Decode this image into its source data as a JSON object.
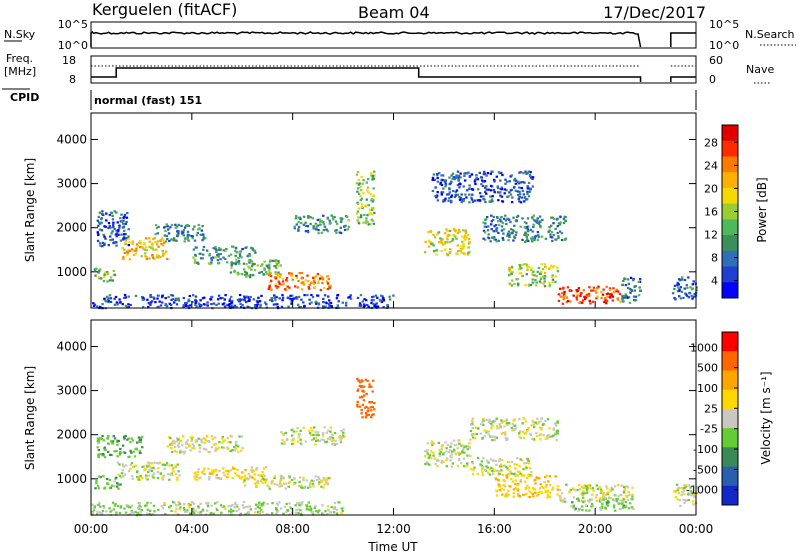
{
  "header": {
    "station": "Kerguelen (fitACF)",
    "beam": "Beam 04",
    "date": "17/Dec/2017"
  },
  "strip_panels": {
    "nsky": {
      "left_label": "N.Sky",
      "right_label": "N.Search",
      "left_ticks": [
        "10^5",
        "10^0"
      ],
      "right_ticks": [
        "10^5",
        "10^0"
      ]
    },
    "freq": {
      "left_label_line1": "Freq.",
      "left_label_line2": "[MHz]",
      "right_label": "Nave",
      "left_ticks": [
        "18",
        "8"
      ],
      "right_ticks": [
        "60",
        "0"
      ]
    },
    "cpid": {
      "label": "CPID",
      "mode_text": "normal (fast) 151"
    }
  },
  "chart_data": [
    {
      "type": "heatmap",
      "title": "",
      "ylabel": "Slant Range [km]",
      "xlabel": "",
      "ylim": [
        180,
        4600
      ],
      "y_ticks": [
        "4000",
        "3000",
        "2000",
        "1000"
      ],
      "x_ticks": [
        "00:00",
        "04:00",
        "08:00",
        "12:00",
        "16:00",
        "20:00",
        "00:00"
      ],
      "xlim_hours": [
        0,
        24
      ],
      "colorbar": {
        "label": "Power [dB]",
        "tick_labels": [
          "28",
          "24",
          "20",
          "16",
          "12",
          "8",
          "4"
        ],
        "colors": [
          "#0000ff",
          "#1f3fd0",
          "#2e6fb8",
          "#3a8f5a",
          "#4db85c",
          "#9acd32",
          "#f5d800",
          "#ffb000",
          "#ff7a00",
          "#ff2a00",
          "#e00000"
        ]
      },
      "regions": [
        {
          "t0": 0.2,
          "t1": 1.5,
          "r0": 1600,
          "r1": 2400,
          "v": 6
        },
        {
          "t0": 1.2,
          "t1": 3.0,
          "r0": 1300,
          "r1": 1800,
          "v": 20
        },
        {
          "t0": 0.1,
          "t1": 1.0,
          "r0": 800,
          "r1": 1100,
          "v": 14
        },
        {
          "t0": 2.5,
          "t1": 4.5,
          "r0": 1700,
          "r1": 2100,
          "v": 9
        },
        {
          "t0": 4.0,
          "t1": 6.5,
          "r0": 1200,
          "r1": 1600,
          "v": 11
        },
        {
          "t0": 5.5,
          "t1": 7.5,
          "r0": 900,
          "r1": 1300,
          "v": 13
        },
        {
          "t0": 7.0,
          "t1": 9.5,
          "r0": 600,
          "r1": 1000,
          "v": 24
        },
        {
          "t0": 8.0,
          "t1": 10.2,
          "r0": 1900,
          "r1": 2300,
          "v": 10
        },
        {
          "t0": 10.5,
          "t1": 11.2,
          "r0": 2100,
          "r1": 3300,
          "v": 15
        },
        {
          "t0": 13.2,
          "t1": 15.0,
          "r0": 1400,
          "r1": 2000,
          "v": 18
        },
        {
          "t0": 13.5,
          "t1": 17.5,
          "r0": 2600,
          "r1": 3300,
          "v": 6
        },
        {
          "t0": 15.5,
          "t1": 18.8,
          "r0": 1700,
          "r1": 2300,
          "v": 9
        },
        {
          "t0": 16.5,
          "t1": 18.5,
          "r0": 700,
          "r1": 1200,
          "v": 16
        },
        {
          "t0": 18.5,
          "t1": 21.0,
          "r0": 300,
          "r1": 700,
          "v": 27
        },
        {
          "t0": 21.0,
          "t1": 21.8,
          "r0": 300,
          "r1": 900,
          "v": 8
        },
        {
          "t0": 23.0,
          "t1": 24.0,
          "r0": 400,
          "r1": 900,
          "v": 8
        },
        {
          "t0": 0.0,
          "t1": 12.0,
          "r0": 200,
          "r1": 500,
          "v": 5
        }
      ]
    },
    {
      "type": "heatmap",
      "title": "",
      "ylabel": "Slant Range [km]",
      "xlabel": "Time UT",
      "ylim": [
        180,
        4600
      ],
      "y_ticks": [
        "4000",
        "3000",
        "2000",
        "1000"
      ],
      "x_ticks": [
        "00:00",
        "04:00",
        "08:00",
        "12:00",
        "16:00",
        "20:00",
        "00:00"
      ],
      "xlim_hours": [
        0,
        24
      ],
      "colorbar": {
        "label": "Velocity [m s⁻¹]",
        "tick_labels": [
          "1000",
          "500",
          "100",
          "25",
          "-25",
          "-100",
          "-500",
          "-1000"
        ],
        "colors": [
          "#1428c8",
          "#2a5fb0",
          "#3a8a55",
          "#66cc33",
          "#c8c8c0",
          "#ffd700",
          "#ffa500",
          "#ff6600",
          "#ff0000"
        ]
      },
      "regions": [
        {
          "t0": 0.2,
          "t1": 2.0,
          "r0": 1500,
          "r1": 2000,
          "v": 80
        },
        {
          "t0": 0.1,
          "t1": 1.2,
          "r0": 800,
          "r1": 1100,
          "v": 60
        },
        {
          "t0": 1.0,
          "t1": 3.5,
          "r0": 1000,
          "r1": 1400,
          "v": 0
        },
        {
          "t0": 3.0,
          "t1": 6.0,
          "r0": 1600,
          "r1": 2000,
          "v": 0
        },
        {
          "t0": 4.0,
          "t1": 7.0,
          "r0": 1000,
          "r1": 1300,
          "v": -60
        },
        {
          "t0": 6.0,
          "t1": 9.5,
          "r0": 800,
          "r1": 1100,
          "v": 0
        },
        {
          "t0": 7.5,
          "t1": 10.0,
          "r0": 1800,
          "r1": 2200,
          "v": 0
        },
        {
          "t0": 10.5,
          "t1": 11.2,
          "r0": 2400,
          "r1": 3300,
          "v": -400
        },
        {
          "t0": 13.2,
          "t1": 15.0,
          "r0": 1300,
          "r1": 1900,
          "v": 0
        },
        {
          "t0": 15.0,
          "t1": 18.5,
          "r0": 1900,
          "r1": 2400,
          "v": 0
        },
        {
          "t0": 15.0,
          "t1": 17.5,
          "r0": 1100,
          "r1": 1500,
          "v": 0
        },
        {
          "t0": 16.0,
          "t1": 18.5,
          "r0": 600,
          "r1": 1100,
          "v": -80
        },
        {
          "t0": 18.5,
          "t1": 21.5,
          "r0": 500,
          "r1": 900,
          "v": 0
        },
        {
          "t0": 19.0,
          "t1": 21.5,
          "r0": 300,
          "r1": 600,
          "v": 50
        },
        {
          "t0": 23.0,
          "t1": 24.0,
          "r0": 400,
          "r1": 900,
          "v": 0
        },
        {
          "t0": 0.0,
          "t1": 10.0,
          "r0": 200,
          "r1": 500,
          "v": 30
        }
      ]
    }
  ]
}
